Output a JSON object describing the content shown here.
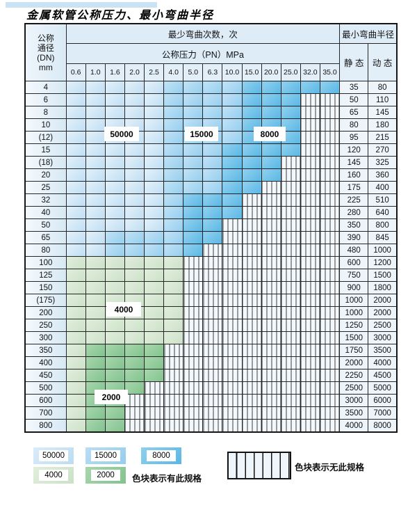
{
  "title": "金属软管公称压力、最小弯曲半径",
  "table": {
    "corner_header": [
      "公称",
      "通径",
      "(DN)",
      "mm"
    ],
    "bend_cycles_header": "最少弯曲次数，次",
    "pressure_header": "公称压力（PN）MPa",
    "radius_header": "最小弯曲半径",
    "static_header": "静 态",
    "dynamic_header": "动 态",
    "pressures": [
      "0.6",
      "1.0",
      "1.6",
      "2.0",
      "2.5",
      "4.0",
      "5.0",
      "6.3",
      "10.0",
      "15.0",
      "20.0",
      "25.0",
      "32.0",
      "35.0"
    ],
    "rows": [
      {
        "dn": "4",
        "spans": {
          "b1": 5,
          "b2": 4,
          "b3": 5
        },
        "static": "35",
        "dynamic": "80"
      },
      {
        "dn": "6",
        "spans": {
          "b1": 5,
          "b2": 4,
          "b3": 3,
          "x": 2
        },
        "static": "50",
        "dynamic": "110"
      },
      {
        "dn": "8",
        "spans": {
          "b1": 5,
          "b2": 4,
          "b3": 3,
          "x": 2
        },
        "static": "65",
        "dynamic": "145"
      },
      {
        "dn": "10",
        "spans": {
          "b1": 5,
          "b2": 4,
          "b3": 3,
          "x": 2
        },
        "static": "80",
        "dynamic": "180"
      },
      {
        "dn": "(12)",
        "spans": {
          "b1": 5,
          "b2": 4,
          "b3": 3,
          "x": 2
        },
        "static": "95",
        "dynamic": "215"
      },
      {
        "dn": "15",
        "spans": {
          "b1": 5,
          "b2": 3,
          "b3": 4,
          "x": 2
        },
        "static": "120",
        "dynamic": "270"
      },
      {
        "dn": "(18)",
        "spans": {
          "b1": 5,
          "b2": 3,
          "b3": 3,
          "x": 3
        },
        "static": "145",
        "dynamic": "325"
      },
      {
        "dn": "20",
        "spans": {
          "b1": 5,
          "b2": 3,
          "b3": 3,
          "x": 3
        },
        "static": "160",
        "dynamic": "360"
      },
      {
        "dn": "25",
        "spans": {
          "b1": 5,
          "b2": 3,
          "b3": 2,
          "x": 4
        },
        "static": "175",
        "dynamic": "400"
      },
      {
        "dn": "32",
        "spans": {
          "b1": 5,
          "b2": 1,
          "b3": 3,
          "x": 5
        },
        "static": "225",
        "dynamic": "510"
      },
      {
        "dn": "40",
        "spans": {
          "b1": 5,
          "b2": 1,
          "b3": 3,
          "x": 5
        },
        "static": "280",
        "dynamic": "640"
      },
      {
        "dn": "50",
        "spans": {
          "b1": 5,
          "b2": 1,
          "b3": 2,
          "x": 6
        },
        "static": "350",
        "dynamic": "800"
      },
      {
        "dn": "65",
        "spans": {
          "b1": 2,
          "b2": 4,
          "b3": 2,
          "x": 6
        },
        "static": "390",
        "dynamic": "845"
      },
      {
        "dn": "80",
        "spans": {
          "b1": 2,
          "b2": 4,
          "b3": 1,
          "x": 7
        },
        "static": "480",
        "dynamic": "1000"
      },
      {
        "dn": "100",
        "spans": {
          "g1": 6,
          "x": 8
        },
        "static": "600",
        "dynamic": "1200"
      },
      {
        "dn": "125",
        "spans": {
          "g1": 6,
          "x": 8
        },
        "static": "750",
        "dynamic": "1500"
      },
      {
        "dn": "150",
        "spans": {
          "g1": 6,
          "x": 8
        },
        "static": "900",
        "dynamic": "1800"
      },
      {
        "dn": "(175)",
        "spans": {
          "g1": 6,
          "x": 8
        },
        "static": "1000",
        "dynamic": "2000"
      },
      {
        "dn": "200",
        "spans": {
          "g1": 6,
          "x": 8
        },
        "static": "1000",
        "dynamic": "2000"
      },
      {
        "dn": "250",
        "spans": {
          "g1": 6,
          "x": 8
        },
        "static": "1250",
        "dynamic": "2500"
      },
      {
        "dn": "300",
        "spans": {
          "g1": 6,
          "x": 8
        },
        "static": "1500",
        "dynamic": "3000"
      },
      {
        "dn": "350",
        "spans": {
          "g1": 1,
          "g2": 4,
          "x": 9
        },
        "static": "1750",
        "dynamic": "3500"
      },
      {
        "dn": "400",
        "spans": {
          "g1": 1,
          "g2": 4,
          "x": 9
        },
        "static": "2000",
        "dynamic": "4000"
      },
      {
        "dn": "450",
        "spans": {
          "g1": 1,
          "g2": 4,
          "x": 9
        },
        "static": "2250",
        "dynamic": "4500"
      },
      {
        "dn": "500",
        "spans": {
          "g1": 1,
          "g2": 3,
          "x": 10
        },
        "static": "2500",
        "dynamic": "5000"
      },
      {
        "dn": "600",
        "spans": {
          "g1": 1,
          "g2": 2,
          "x": 11
        },
        "static": "3000",
        "dynamic": "6000"
      },
      {
        "dn": "700",
        "spans": {
          "g1": 1,
          "g2": 2,
          "x": 11
        },
        "static": "3500",
        "dynamic": "7000"
      },
      {
        "dn": "800",
        "spans": {
          "g1": 1,
          "g2": 2,
          "x": 11
        },
        "static": "4000",
        "dynamic": "8000"
      }
    ]
  },
  "bands": {
    "b1": {
      "label": "50000",
      "color": "#cbe4f6"
    },
    "b2": {
      "label": "15000",
      "color": "#a3d4f0"
    },
    "b3": {
      "label": "8000",
      "color": "#6fc0e8"
    },
    "g1": {
      "label": "4000",
      "color": "#d5e7d1"
    },
    "g2": {
      "label": "2000",
      "color": "#92cb9b"
    },
    "x": {
      "label": "无此规格",
      "color": "#f3f8fc"
    }
  },
  "band_labels": [
    {
      "text": "50000",
      "band": "b1"
    },
    {
      "text": "15000",
      "band": "b2"
    },
    {
      "text": "8000",
      "band": "b3"
    },
    {
      "text": "4000",
      "band": "g1"
    },
    {
      "text": "2000",
      "band": "g2"
    }
  ],
  "legend": {
    "items": [
      {
        "text": "50000",
        "band": "b1"
      },
      {
        "text": "15000",
        "band": "b2"
      },
      {
        "text": "8000",
        "band": "b3"
      },
      {
        "text": "4000",
        "band": "g1"
      },
      {
        "text": "2000",
        "band": "g2"
      }
    ],
    "has_spec_text": "色块表示有此规格",
    "no_spec_text": "色块表示无此规格"
  }
}
